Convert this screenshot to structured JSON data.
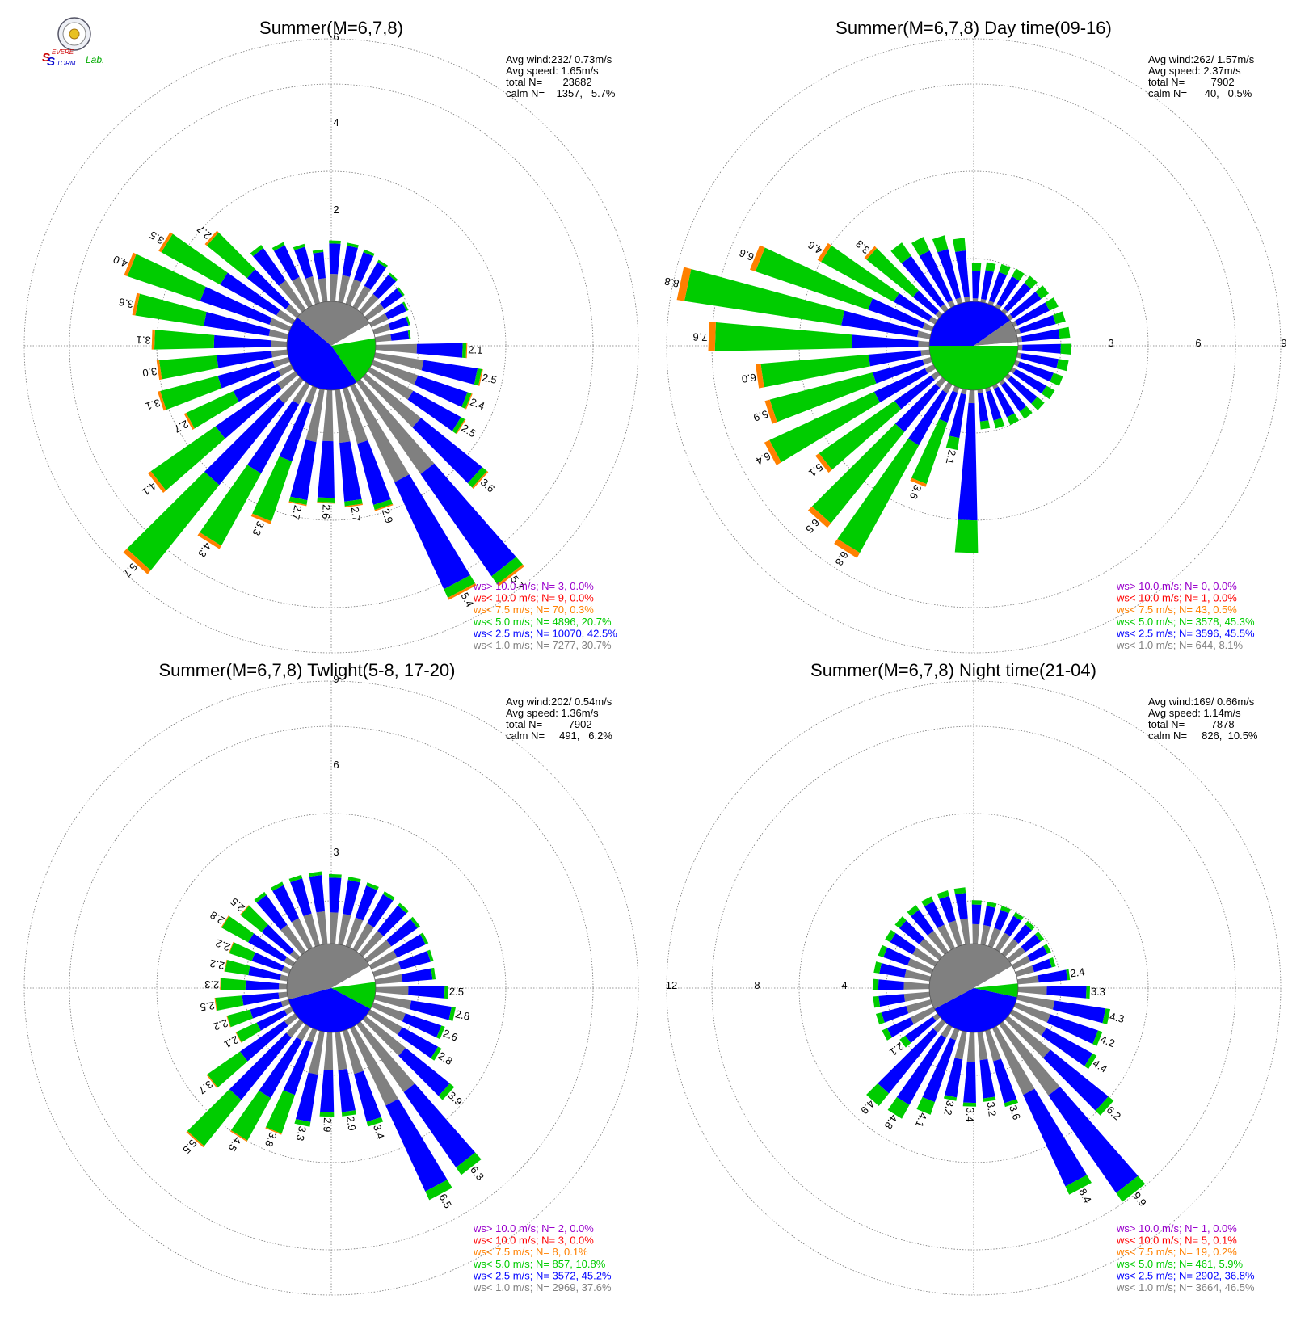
{
  "logo": {
    "text_s1": "S",
    "text_evere": "EVERE",
    "text_s2": "S",
    "text_torm": "TORM",
    "text_lab": "Lab."
  },
  "colors": {
    "calm": "#ffffff",
    "ws_1": "#808080",
    "ws_2_5": "#0000ff",
    "ws_5": "#00cc00",
    "ws_7_5": "#ff8000",
    "ws_10": "#ff0000",
    "ws_gt10": "#9900cc",
    "grid": "#777777"
  },
  "chart_data": [
    {
      "type": "windrose",
      "title": "Summer(M=6,7,8)",
      "radial_ticks": [
        "2",
        "4",
        "6"
      ],
      "stats": {
        "avg_wind": "Avg wind:232/ 0.73m/s",
        "avg_speed": "Avg speed: 1.65m/s",
        "total": "total N=       23682",
        "calm": "calm N=    1357,   5.7%"
      },
      "legend": [
        {
          "key": "ws_gt10",
          "text": "ws> 10.0 m/s; N=       3,   0.0%"
        },
        {
          "key": "ws_10",
          "text": "ws< 10.0 m/s; N=       9,   0.0%"
        },
        {
          "key": "ws_7_5",
          "text": "ws<  7.5 m/s; N=      70,   0.3%"
        },
        {
          "key": "ws_5",
          "text": "ws<  5.0 m/s; N=   4896,  20.7%"
        },
        {
          "key": "ws_2_5",
          "text": "ws<  2.5 m/s; N= 10070,  42.5%"
        },
        {
          "key": "ws_1",
          "text": "ws<  1.0 m/s; N=   7277,  30.7%"
        }
      ],
      "petal_labels": [
        {
          "dir": 92,
          "text": "2.1"
        },
        {
          "dir": 102,
          "text": "2.5"
        },
        {
          "dir": 112,
          "text": "2.4"
        },
        {
          "dir": 122,
          "text": "2.5"
        },
        {
          "dir": 132,
          "text": "3.6"
        },
        {
          "dir": 142,
          "text": "5.7"
        },
        {
          "dir": 152,
          "text": "5.4"
        },
        {
          "dir": 162,
          "text": "2.9"
        },
        {
          "dir": 172,
          "text": "2.7"
        },
        {
          "dir": 182,
          "text": "2.6"
        },
        {
          "dir": 192,
          "text": "2.7"
        },
        {
          "dir": 202,
          "text": "3.3"
        },
        {
          "dir": 212,
          "text": "4.3"
        },
        {
          "dir": 222,
          "text": "5.7"
        },
        {
          "dir": 232,
          "text": "4.1"
        },
        {
          "dir": 242,
          "text": "2.7"
        },
        {
          "dir": 252,
          "text": "3.1"
        },
        {
          "dir": 262,
          "text": "3.0"
        },
        {
          "dir": 272,
          "text": "3.1"
        },
        {
          "dir": 282,
          "text": "3.6"
        },
        {
          "dir": 292,
          "text": "4.0"
        },
        {
          "dir": 302,
          "text": "3.5"
        },
        {
          "dir": 312,
          "text": "2.7"
        }
      ]
    },
    {
      "type": "windrose",
      "title": "Summer(M=6,7,8) Day time(09-16)",
      "radial_ticks": [
        "3",
        "6",
        "9"
      ],
      "stats": {
        "avg_wind": "Avg wind:262/ 1.57m/s",
        "avg_speed": "Avg speed: 2.37m/s",
        "total": "total N=         7902",
        "calm": "calm N=      40,   0.5%"
      },
      "legend": [
        {
          "key": "ws_gt10",
          "text": "ws> 10.0 m/s; N=       0,   0.0%"
        },
        {
          "key": "ws_10",
          "text": "ws< 10.0 m/s; N=       1,   0.0%"
        },
        {
          "key": "ws_7_5",
          "text": "ws<  7.5 m/s; N=      43,   0.5%"
        },
        {
          "key": "ws_5",
          "text": "ws<  5.0 m/s; N=   3578,  45.3%"
        },
        {
          "key": "ws_2_5",
          "text": "ws<  2.5 m/s; N=   3596,  45.5%"
        },
        {
          "key": "ws_1",
          "text": "ws<  1.0 m/s; N=     644,   8.1%"
        }
      ],
      "petal_labels": [
        {
          "dir": 192,
          "text": "2.1"
        },
        {
          "dir": 202,
          "text": "3.6"
        },
        {
          "dir": 212,
          "text": "6.8"
        },
        {
          "dir": 222,
          "text": "6.5"
        },
        {
          "dir": 232,
          "text": "5.1"
        },
        {
          "dir": 242,
          "text": "6.4"
        },
        {
          "dir": 252,
          "text": "5.9"
        },
        {
          "dir": 262,
          "text": "6.0"
        },
        {
          "dir": 272,
          "text": "7.6"
        },
        {
          "dir": 282,
          "text": "8.8"
        },
        {
          "dir": 292,
          "text": "6.6"
        },
        {
          "dir": 302,
          "text": "4.6"
        },
        {
          "dir": 312,
          "text": "3.3"
        }
      ]
    },
    {
      "type": "windrose",
      "title": "Summer(M=6,7,8) Twlight(5-8, 17-20)",
      "radial_ticks": [
        "3",
        "6",
        "9"
      ],
      "stats": {
        "avg_wind": "Avg wind:202/ 0.54m/s",
        "avg_speed": "Avg speed: 1.36m/s",
        "total": "total N=         7902",
        "calm": "calm N=     491,   6.2%"
      },
      "legend": [
        {
          "key": "ws_gt10",
          "text": "ws> 10.0 m/s; N=       2,   0.0%"
        },
        {
          "key": "ws_10",
          "text": "ws< 10.0 m/s; N=       3,   0.0%"
        },
        {
          "key": "ws_7_5",
          "text": "ws<  7.5 m/s; N=       8,   0.1%"
        },
        {
          "key": "ws_5",
          "text": "ws<  5.0 m/s; N=     857,  10.8%"
        },
        {
          "key": "ws_2_5",
          "text": "ws<  2.5 m/s; N=   3572,  45.2%"
        },
        {
          "key": "ws_1",
          "text": "ws<  1.0 m/s; N=   2969,  37.6%"
        }
      ],
      "petal_labels": [
        {
          "dir": 92,
          "text": "2.5"
        },
        {
          "dir": 102,
          "text": "2.8"
        },
        {
          "dir": 112,
          "text": "2.6"
        },
        {
          "dir": 122,
          "text": "2.8"
        },
        {
          "dir": 132,
          "text": "3.9"
        },
        {
          "dir": 142,
          "text": "6.3"
        },
        {
          "dir": 152,
          "text": "6.5"
        },
        {
          "dir": 162,
          "text": "3.4"
        },
        {
          "dir": 172,
          "text": "2.9"
        },
        {
          "dir": 182,
          "text": "2.9"
        },
        {
          "dir": 192,
          "text": "3.3"
        },
        {
          "dir": 202,
          "text": "3.8"
        },
        {
          "dir": 212,
          "text": "4.5"
        },
        {
          "dir": 222,
          "text": "5.5"
        },
        {
          "dir": 232,
          "text": "3.7"
        },
        {
          "dir": 242,
          "text": "2.1"
        },
        {
          "dir": 252,
          "text": "2.2"
        },
        {
          "dir": 262,
          "text": "2.5"
        },
        {
          "dir": 272,
          "text": "2.3"
        },
        {
          "dir": 282,
          "text": "2.2"
        },
        {
          "dir": 292,
          "text": "2.2"
        },
        {
          "dir": 302,
          "text": "2.8"
        },
        {
          "dir": 312,
          "text": "2.5"
        }
      ]
    },
    {
      "type": "windrose",
      "title": "Summer(M=6,7,8) Night time(21-04)",
      "radial_ticks": [
        "4",
        "8",
        "12"
      ],
      "stats": {
        "avg_wind": "Avg wind:169/ 0.66m/s",
        "avg_speed": "Avg speed: 1.14m/s",
        "total": "total N=         7878",
        "calm": "calm N=     826,  10.5%"
      },
      "legend": [
        {
          "key": "ws_gt10",
          "text": "ws> 10.0 m/s; N=       1,   0.0%"
        },
        {
          "key": "ws_10",
          "text": "ws< 10.0 m/s; N=       5,   0.1%"
        },
        {
          "key": "ws_7_5",
          "text": "ws<  7.5 m/s; N=      19,   0.2%"
        },
        {
          "key": "ws_5",
          "text": "ws<  5.0 m/s; N=     461,   5.9%"
        },
        {
          "key": "ws_2_5",
          "text": "ws<  2.5 m/s; N=   2902,  36.8%"
        },
        {
          "key": "ws_1",
          "text": "ws<  1.0 m/s; N=   3664,  46.5%"
        }
      ],
      "petal_labels": [
        {
          "dir": 82,
          "text": "2.4"
        },
        {
          "dir": 92,
          "text": "3.3"
        },
        {
          "dir": 102,
          "text": "4.3"
        },
        {
          "dir": 112,
          "text": "4.2"
        },
        {
          "dir": 122,
          "text": "4.4"
        },
        {
          "dir": 132,
          "text": "6.2"
        },
        {
          "dir": 142,
          "text": "9.9"
        },
        {
          "dir": 152,
          "text": "8.4"
        },
        {
          "dir": 162,
          "text": "3.6"
        },
        {
          "dir": 172,
          "text": "3.2"
        },
        {
          "dir": 182,
          "text": "3.4"
        },
        {
          "dir": 192,
          "text": "3.2"
        },
        {
          "dir": 202,
          "text": "4.1"
        },
        {
          "dir": 212,
          "text": "4.8"
        },
        {
          "dir": 222,
          "text": "4.9"
        },
        {
          "dir": 232,
          "text": "2.1"
        }
      ]
    }
  ]
}
